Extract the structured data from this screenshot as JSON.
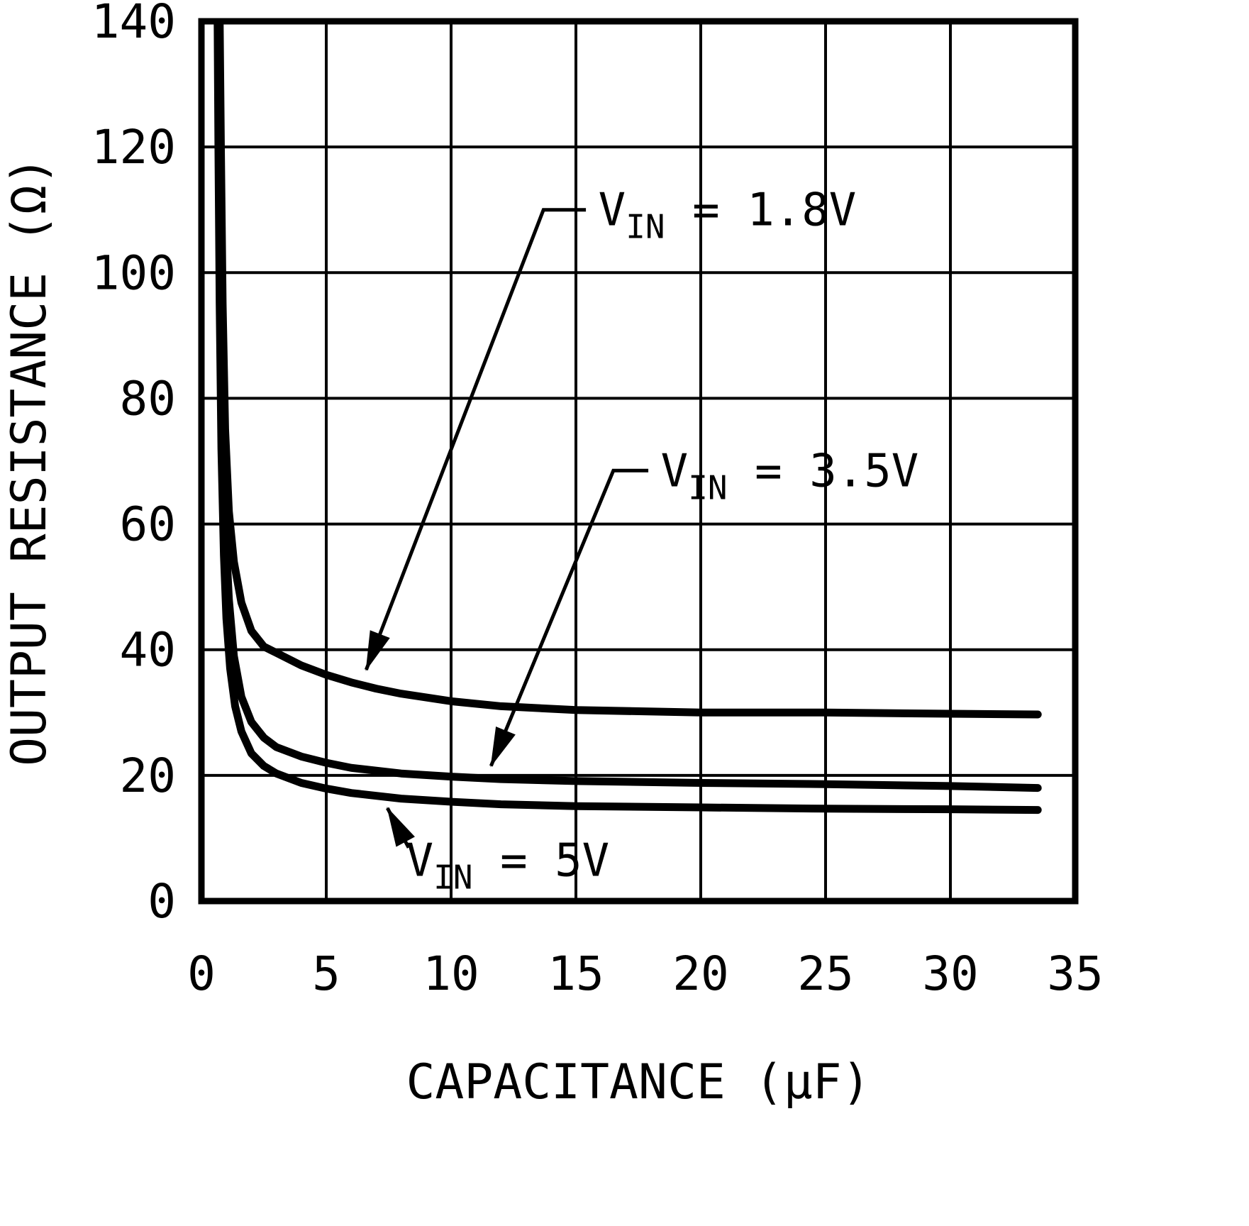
{
  "figure": {
    "background": "#ffffff",
    "line_color": "#000000"
  },
  "chart_data": {
    "type": "line",
    "title": "",
    "xlabel": "CAPACITANCE (µF)",
    "ylabel": "OUTPUT RESISTANCE (Ω)",
    "xlim": [
      0,
      35
    ],
    "ylim": [
      0,
      140
    ],
    "xticks": [
      0,
      5,
      10,
      15,
      20,
      25,
      30,
      35
    ],
    "yticks": [
      0,
      20,
      40,
      60,
      80,
      100,
      120,
      140
    ],
    "grid": true,
    "legend": "inline-annotations",
    "series": [
      {
        "name": "VIN = 1.8V",
        "x": [
          0.72,
          0.78,
          0.85,
          0.95,
          1.1,
          1.3,
          1.6,
          2.0,
          2.5,
          3.0,
          4,
          5,
          6,
          7,
          8,
          10,
          12,
          15,
          20,
          25,
          30,
          33.5
        ],
        "y": [
          145,
          120,
          95,
          75,
          62,
          54,
          47.5,
          43,
          40.5,
          39.5,
          37.5,
          36,
          34.8,
          33.8,
          33,
          31.8,
          31,
          30.4,
          30,
          30,
          29.8,
          29.7
        ]
      },
      {
        "name": "VIN = 3.5V",
        "x": [
          0.68,
          0.72,
          0.78,
          0.85,
          0.95,
          1.1,
          1.3,
          1.6,
          2.0,
          2.5,
          3.0,
          4,
          5,
          6,
          8,
          10,
          12,
          15,
          20,
          25,
          30,
          33.5
        ],
        "y": [
          145,
          120,
          95,
          75,
          60,
          48,
          39,
          32.5,
          28.5,
          26,
          24.5,
          23,
          22,
          21.2,
          20.3,
          19.8,
          19.4,
          19.1,
          18.8,
          18.6,
          18.3,
          18
        ]
      },
      {
        "name": "VIN = 5V",
        "x": [
          0.64,
          0.68,
          0.73,
          0.8,
          0.9,
          1.0,
          1.15,
          1.35,
          1.6,
          2.0,
          2.5,
          3.0,
          4,
          5,
          6,
          8,
          10,
          12,
          15,
          20,
          25,
          30,
          33.5
        ],
        "y": [
          145,
          120,
          95,
          72,
          55,
          45,
          37,
          31,
          27,
          23.5,
          21.5,
          20.3,
          18.8,
          17.9,
          17.2,
          16.3,
          15.8,
          15.4,
          15.1,
          14.9,
          14.7,
          14.6,
          14.5
        ]
      }
    ],
    "annotations": [
      {
        "series": "VIN = 1.8V",
        "label": {
          "pre": "V",
          "sub": "IN",
          "post": " = 1.8V"
        },
        "label_pos": {
          "x": 15.9,
          "y": 110
        },
        "leader": [
          [
            15.4,
            110
          ],
          [
            13.7,
            110
          ],
          [
            6.6,
            36.8
          ]
        ]
      },
      {
        "series": "VIN = 3.5V",
        "label": {
          "pre": "V",
          "sub": "IN",
          "post": " = 3.5V"
        },
        "label_pos": {
          "x": 18.4,
          "y": 68.5
        },
        "leader": [
          [
            17.9,
            68.5
          ],
          [
            16.5,
            68.5
          ],
          [
            11.6,
            21.5
          ]
        ]
      },
      {
        "series": "VIN = 5V",
        "label": {
          "pre": "V",
          "sub": "IN",
          "post": " = 5V"
        },
        "label_pos": {
          "x": 8.2,
          "y": 6.5
        },
        "leader": [
          [
            8.3,
            8.5
          ],
          [
            7.45,
            14.8
          ]
        ]
      }
    ]
  }
}
